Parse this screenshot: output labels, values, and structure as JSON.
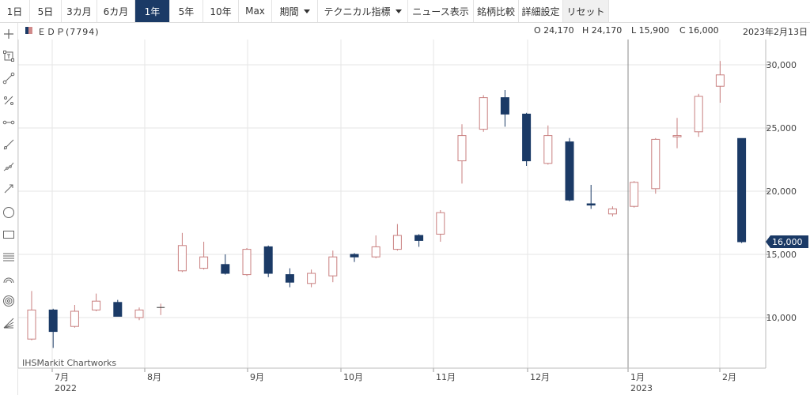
{
  "toolbar": {
    "periods": [
      {
        "label": "1日"
      },
      {
        "label": "5日"
      },
      {
        "label": "3カ月"
      },
      {
        "label": "6カ月"
      },
      {
        "label": "1年"
      },
      {
        "label": "5年"
      },
      {
        "label": "10年"
      },
      {
        "label": "Max"
      }
    ],
    "active_period": "1年",
    "period_menu": "期間",
    "technical_menu": "テクニカル指標",
    "news": "ニュース表示",
    "compare": "銘柄比較",
    "settings": "詳細設定",
    "reset": "リセット"
  },
  "left_tools": [
    "crosshair-icon",
    "zoom-box-icon",
    "trendline-icon",
    "percent-line-icon",
    "horizontal-segment-icon",
    "line-icon",
    "polyline-icon",
    "arrow-line-icon",
    "circle-icon",
    "rectangle-icon",
    "fib-levels-icon",
    "arc-icon",
    "target-icon",
    "fan-icon"
  ],
  "header": {
    "symbol": "ＥＤＰ(7794)",
    "open": "O 24,170",
    "high": "H 24,170",
    "low": "L 15,900",
    "close": "C 16,000",
    "date": "2023年2月13日"
  },
  "credit": "IHSMarkit Chartworks",
  "colors": {
    "up": "#c97f7f",
    "down": "#1b3a66",
    "grid": "#e6e6e6"
  },
  "chart_data": {
    "type": "candlestick",
    "interval": "weekly",
    "y_axis": {
      "min": 6000,
      "max": 32000,
      "ticks": [
        10000,
        15000,
        20000,
        25000,
        30000
      ],
      "tick_labels": [
        "10,000",
        "15,000",
        "20,000",
        "25,000",
        "30,000"
      ],
      "position": "right"
    },
    "x_axis": {
      "labels": [
        "7月",
        "8月",
        "9月",
        "10月",
        "11月",
        "12月",
        "1月",
        "2月"
      ],
      "year_labels": [
        {
          "label": "2022",
          "month_index": 0
        },
        {
          "label": "2023",
          "month_index": 6
        }
      ]
    },
    "last_price": 16000,
    "last_price_label": "16,000",
    "grid": true,
    "candles": [
      {
        "o": 8300,
        "h": 12100,
        "l": 8200,
        "c": 10600
      },
      {
        "o": 10600,
        "h": 10700,
        "l": 7600,
        "c": 8900
      },
      {
        "o": 9300,
        "h": 11000,
        "l": 9200,
        "c": 10500
      },
      {
        "o": 10600,
        "h": 11900,
        "l": 10500,
        "c": 11300
      },
      {
        "o": 11200,
        "h": 11400,
        "l": 10100,
        "c": 10100
      },
      {
        "o": 10000,
        "h": 10800,
        "l": 9800,
        "c": 10600
      },
      {
        "o": 10800,
        "h": 11100,
        "l": 10200,
        "c": 10800
      },
      {
        "o": 13700,
        "h": 16700,
        "l": 13600,
        "c": 15700
      },
      {
        "o": 13900,
        "h": 16000,
        "l": 13800,
        "c": 14800
      },
      {
        "o": 14200,
        "h": 15000,
        "l": 13400,
        "c": 13500
      },
      {
        "o": 13400,
        "h": 15500,
        "l": 13300,
        "c": 15400
      },
      {
        "o": 15600,
        "h": 15700,
        "l": 13200,
        "c": 13500
      },
      {
        "o": 13400,
        "h": 13900,
        "l": 12400,
        "c": 12800
      },
      {
        "o": 12700,
        "h": 13800,
        "l": 12400,
        "c": 13500
      },
      {
        "o": 13300,
        "h": 15300,
        "l": 12800,
        "c": 14800
      },
      {
        "o": 15000,
        "h": 15100,
        "l": 14400,
        "c": 14800
      },
      {
        "o": 14800,
        "h": 16500,
        "l": 14700,
        "c": 15600
      },
      {
        "o": 15400,
        "h": 17400,
        "l": 15300,
        "c": 16500
      },
      {
        "o": 16500,
        "h": 16600,
        "l": 15600,
        "c": 16100
      },
      {
        "o": 16600,
        "h": 18500,
        "l": 16000,
        "c": 18300
      },
      {
        "o": 22400,
        "h": 25300,
        "l": 20600,
        "c": 24400
      },
      {
        "o": 24900,
        "h": 27600,
        "l": 24700,
        "c": 27400
      },
      {
        "o": 27400,
        "h": 28000,
        "l": 25100,
        "c": 26100
      },
      {
        "o": 26100,
        "h": 26200,
        "l": 22000,
        "c": 22400
      },
      {
        "o": 22200,
        "h": 25200,
        "l": 22100,
        "c": 24400
      },
      {
        "o": 23900,
        "h": 24200,
        "l": 19200,
        "c": 19300
      },
      {
        "o": 19000,
        "h": 20500,
        "l": 18600,
        "c": 18900
      },
      {
        "o": 18200,
        "h": 18800,
        "l": 18000,
        "c": 18600
      },
      {
        "o": 18800,
        "h": 20800,
        "l": 18700,
        "c": 20700
      },
      {
        "o": 20200,
        "h": 24200,
        "l": 19800,
        "c": 24100
      },
      {
        "o": 24300,
        "h": 25800,
        "l": 23400,
        "c": 24400
      },
      {
        "o": 24700,
        "h": 27700,
        "l": 24300,
        "c": 27500
      },
      {
        "o": 28300,
        "h": 30300,
        "l": 27000,
        "c": 29200
      },
      {
        "o": 24170,
        "h": 24170,
        "l": 15900,
        "c": 16000
      }
    ]
  }
}
